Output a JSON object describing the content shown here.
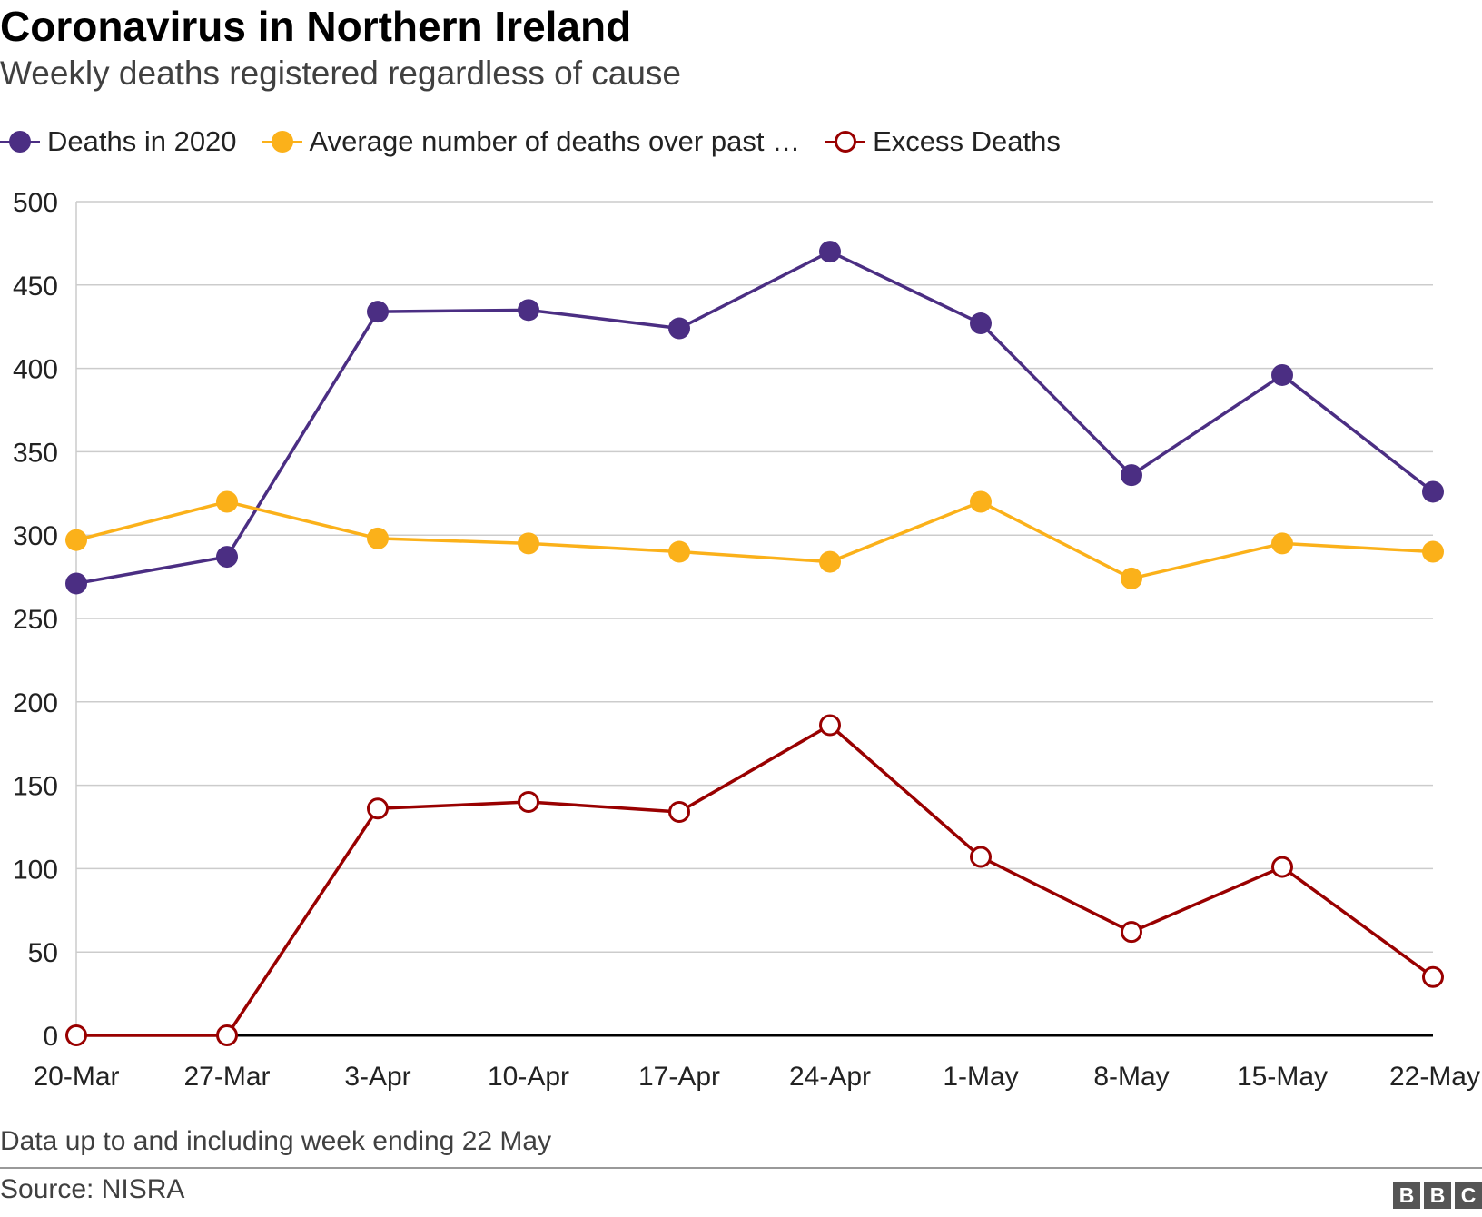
{
  "title": "Coronavirus in Northern Ireland",
  "subtitle": "Weekly deaths registered regardless of cause",
  "footnote": "Data up to and including week ending 22 May",
  "source": "Source: NISRA",
  "logo": [
    "B",
    "B",
    "C"
  ],
  "legend": [
    {
      "label": "Deaths in 2020",
      "color": "#4b2e83",
      "hollow": false
    },
    {
      "label": "Average number of deaths over past …",
      "color": "#fbb11a",
      "hollow": false
    },
    {
      "label": "Excess Deaths",
      "color": "#990000",
      "hollow": true
    }
  ],
  "chart_data": {
    "type": "line",
    "categories": [
      "20-Mar",
      "27-Mar",
      "3-Apr",
      "10-Apr",
      "17-Apr",
      "24-Apr",
      "1-May",
      "8-May",
      "15-May",
      "22-May"
    ],
    "series": [
      {
        "name": "Deaths in 2020",
        "color": "#4b2e83",
        "hollow": false,
        "values": [
          271,
          287,
          434,
          435,
          424,
          470,
          427,
          336,
          396,
          326
        ]
      },
      {
        "name": "Average number of deaths over past …",
        "color": "#fbb11a",
        "hollow": false,
        "values": [
          297,
          320,
          298,
          295,
          290,
          284,
          320,
          274,
          295,
          290
        ]
      },
      {
        "name": "Excess Deaths",
        "color": "#990000",
        "hollow": true,
        "values": [
          0,
          0,
          136,
          140,
          134,
          186,
          107,
          62,
          101,
          35
        ]
      }
    ],
    "ylim": [
      0,
      500
    ],
    "yticks": [
      0,
      50,
      100,
      150,
      200,
      250,
      300,
      350,
      400,
      450,
      500
    ],
    "grid": true,
    "legend_position": "top-left"
  }
}
